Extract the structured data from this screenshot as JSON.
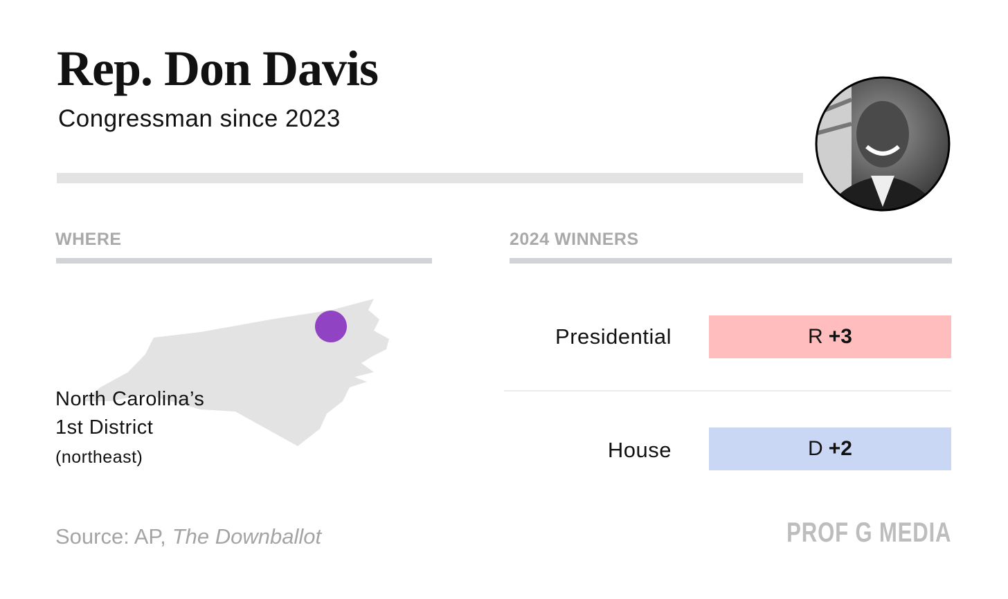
{
  "header": {
    "title": "Rep. Don Davis",
    "subtitle": "Congressman since 2023"
  },
  "where": {
    "label": "WHERE",
    "lines": [
      "North Carolina’s",
      "1st District"
    ],
    "note": "(northeast)"
  },
  "winners": {
    "label": "2024 WINNERS",
    "rows": [
      {
        "race": "Presidential",
        "party": "R",
        "margin": "+3",
        "color": "#ffbdbd"
      },
      {
        "race": "House",
        "party": "D",
        "margin": "+2",
        "color": "#c9d7f5"
      }
    ]
  },
  "footer": {
    "source": "Source: AP,",
    "source_italic": "The Downballot",
    "brand": "PROF G MEDIA"
  }
}
